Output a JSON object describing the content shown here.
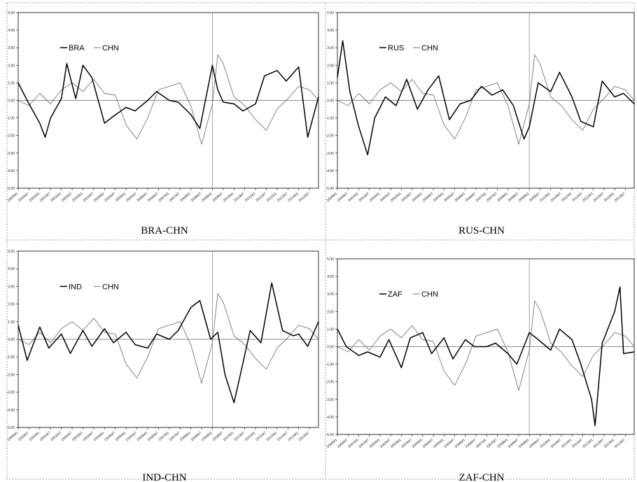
{
  "figure": {
    "panel_titles": [
      "BRA-CHN",
      "RUS-CHN",
      "IND-CHN",
      "ZAF-CHN"
    ]
  },
  "chart_data": [
    {
      "type": "line",
      "title": "BRA-CHN",
      "ylim": [
        -5,
        5
      ],
      "y_ticks": [
        "5.00",
        "4.00",
        "3.00",
        "2.00",
        "1.00",
        "0.00",
        "-1.00",
        "-2.00",
        "-3.00",
        "-4.00",
        "-5.00"
      ],
      "x_tick_labels": [
        "2000M1",
        "2000M7",
        "2001M1",
        "2001M7",
        "2002M1",
        "2002M7",
        "2003M1",
        "2003M7",
        "2004M1",
        "2004M7",
        "2005M1",
        "2005M7",
        "2006M1",
        "2006M7",
        "2007M1",
        "2007M7",
        "2008M1",
        "2008M7",
        "2009M1",
        "2009M7",
        "2010M1",
        "2010M7",
        "2011M1",
        "2011M7",
        "2012M1",
        "2012M7",
        "2013M1",
        "2013M7"
      ],
      "x_range": [
        "2000M1",
        "2013M12"
      ],
      "reference_line_x": "2009M1",
      "grid": false,
      "legend_position": "top-left",
      "series": [
        {
          "name": "BRA",
          "color": "#000000",
          "x": [
            "2000M1",
            "2000M6",
            "2001M1",
            "2001M4",
            "2001M7",
            "2002M1",
            "2002M4",
            "2002M9",
            "2003M1",
            "2003M6",
            "2004M1",
            "2004M6",
            "2005M1",
            "2005M6",
            "2006M1",
            "2006M6",
            "2007M1",
            "2007M6",
            "2008M1",
            "2008M6",
            "2009M1",
            "2009M4",
            "2009M7",
            "2010M1",
            "2010M6",
            "2011M1",
            "2011M6",
            "2012M1",
            "2012M6",
            "2013M1",
            "2013M6",
            "2013M12"
          ],
          "values": [
            1.0,
            0.0,
            -1.3,
            -2.1,
            -1.0,
            0.1,
            2.1,
            0.1,
            2.0,
            1.3,
            -1.3,
            -0.9,
            -0.4,
            -0.6,
            0.0,
            0.5,
            0.0,
            -0.1,
            -0.8,
            -1.6,
            2.0,
            0.6,
            -0.1,
            -0.2,
            -0.6,
            -0.2,
            1.4,
            1.7,
            1.1,
            1.9,
            -2.1,
            0.2
          ]
        },
        {
          "name": "CHN",
          "color": "#777777",
          "x": [
            "2000M1",
            "2000M7",
            "2001M1",
            "2001M7",
            "2002M1",
            "2002M7",
            "2003M1",
            "2003M7",
            "2004M1",
            "2004M7",
            "2005M1",
            "2005M7",
            "2006M1",
            "2006M7",
            "2007M1",
            "2007M7",
            "2008M1",
            "2008M7",
            "2009M1",
            "2009M4",
            "2009M7",
            "2010M1",
            "2010M7",
            "2011M1",
            "2011M7",
            "2012M1",
            "2012M7",
            "2013M1",
            "2013M7",
            "2013M12"
          ],
          "values": [
            0.0,
            -0.3,
            0.4,
            -0.2,
            0.6,
            1.0,
            0.5,
            1.2,
            0.4,
            0.3,
            -1.4,
            -2.2,
            -1.0,
            0.6,
            0.8,
            1.0,
            -0.3,
            -2.5,
            -0.2,
            2.6,
            2.1,
            0.2,
            -0.3,
            -1.1,
            -1.7,
            -0.5,
            0.1,
            0.8,
            0.6,
            0.0
          ]
        }
      ]
    },
    {
      "type": "line",
      "title": "RUS-CHN",
      "ylim": [
        -5,
        5
      ],
      "y_ticks": [
        "5.00",
        "4.00",
        "3.00",
        "2.00",
        "1.00",
        "0.00",
        "-1.00",
        "-2.00",
        "-3.00",
        "-4.00",
        "-5.00"
      ],
      "x_tick_labels": [
        "2000M1",
        "2000M7",
        "2001M1",
        "2001M7",
        "2002M1",
        "2002M7",
        "2003M1",
        "2003M7",
        "2004M1",
        "2004M7",
        "2005M1",
        "2005M7",
        "2006M1",
        "2006M7",
        "2007M1",
        "2007M7",
        "2008M1",
        "2008M7",
        "2009M1",
        "2009M7",
        "2010M1",
        "2010M7",
        "2011M1",
        "2011M7",
        "2012M1",
        "2012M7",
        "2013M1",
        "2013M7"
      ],
      "x_range": [
        "2000M1",
        "2013M12"
      ],
      "reference_line_x": "2009M1",
      "grid": false,
      "legend_position": "top-left",
      "series": [
        {
          "name": "RUS",
          "color": "#000000",
          "x": [
            "2000M1",
            "2000M4",
            "2000M8",
            "2001M1",
            "2001M6",
            "2001M10",
            "2002M4",
            "2002M10",
            "2003M4",
            "2003M10",
            "2004M4",
            "2004M10",
            "2005M4",
            "2005M10",
            "2006M4",
            "2006M10",
            "2007M4",
            "2007M10",
            "2008M4",
            "2008M10",
            "2009M1",
            "2009M6",
            "2010M1",
            "2010M6",
            "2011M1",
            "2011M6",
            "2012M1",
            "2012M6",
            "2013M1",
            "2013M6",
            "2013M12"
          ],
          "values": [
            1.3,
            3.4,
            0.5,
            -1.5,
            -3.1,
            -1.0,
            0.2,
            -0.3,
            1.2,
            -0.5,
            0.6,
            1.4,
            -1.1,
            -0.2,
            0.0,
            0.8,
            0.3,
            0.6,
            -0.3,
            -2.2,
            -1.5,
            1.0,
            0.5,
            1.6,
            0.2,
            -1.2,
            -1.5,
            1.1,
            0.2,
            0.4,
            -0.2
          ]
        },
        {
          "name": "CHN",
          "color": "#777777",
          "x": [
            "2000M1",
            "2000M7",
            "2001M1",
            "2001M7",
            "2002M1",
            "2002M7",
            "2003M1",
            "2003M7",
            "2004M1",
            "2004M7",
            "2005M1",
            "2005M7",
            "2006M1",
            "2006M7",
            "2007M1",
            "2007M7",
            "2008M1",
            "2008M7",
            "2009M1",
            "2009M4",
            "2009M7",
            "2010M1",
            "2010M7",
            "2011M1",
            "2011M7",
            "2012M1",
            "2012M7",
            "2013M1",
            "2013M7",
            "2013M12"
          ],
          "values": [
            0.0,
            -0.3,
            0.4,
            -0.2,
            0.6,
            1.0,
            0.5,
            1.2,
            0.4,
            0.3,
            -1.4,
            -2.2,
            -1.0,
            0.6,
            0.8,
            1.0,
            -0.3,
            -2.5,
            -0.2,
            2.6,
            2.1,
            0.2,
            -0.3,
            -1.1,
            -1.7,
            -0.5,
            0.1,
            0.8,
            0.6,
            0.0
          ]
        }
      ]
    },
    {
      "type": "line",
      "title": "IND-CHN",
      "ylim": [
        -5,
        5
      ],
      "y_ticks": [
        "5.00",
        "4.00",
        "3.00",
        "2.00",
        "1.00",
        "0.00",
        "-1.00",
        "-2.00",
        "-3.00",
        "-4.00",
        "-5.00"
      ],
      "x_tick_labels": [
        "2000M1",
        "2000M7",
        "2001M1",
        "2001M7",
        "2002M1",
        "2002M7",
        "2003M1",
        "2003M7",
        "2004M1",
        "2004M7",
        "2005M1",
        "2005M7",
        "2006M1",
        "2006M7",
        "2007M1",
        "2007M7",
        "2008M1",
        "2008M7",
        "2009M1",
        "2009M7",
        "2010M1",
        "2010M7",
        "2011M1",
        "2011M7",
        "2012M1",
        "2012M7",
        "2013M1",
        "2013M7"
      ],
      "x_range": [
        "2000M1",
        "2013M12"
      ],
      "reference_line_x": "2009M1",
      "grid": false,
      "legend_position": "top-left",
      "series": [
        {
          "name": "IND",
          "color": "#000000",
          "x": [
            "2000M1",
            "2000M6",
            "2001M1",
            "2001M6",
            "2002M1",
            "2002M6",
            "2003M1",
            "2003M6",
            "2004M1",
            "2004M6",
            "2005M1",
            "2005M6",
            "2006M1",
            "2006M6",
            "2007M1",
            "2007M6",
            "2008M1",
            "2008M6",
            "2008M12",
            "2009M4",
            "2009M8",
            "2010M1",
            "2010M5",
            "2010M10",
            "2011M4",
            "2011M10",
            "2012M4",
            "2012M10",
            "2013M1",
            "2013M6",
            "2013M12"
          ],
          "values": [
            0.8,
            -1.2,
            0.7,
            -0.5,
            0.3,
            -0.8,
            0.5,
            -0.4,
            0.6,
            -0.2,
            0.4,
            -0.3,
            -0.5,
            0.3,
            0.0,
            0.5,
            1.8,
            2.2,
            0.0,
            0.4,
            -2.0,
            -3.6,
            -1.8,
            0.5,
            -0.2,
            3.2,
            0.5,
            0.2,
            0.3,
            -0.4,
            1.0
          ]
        },
        {
          "name": "CHN",
          "color": "#777777",
          "x": [
            "2000M1",
            "2000M7",
            "2001M1",
            "2001M7",
            "2002M1",
            "2002M7",
            "2003M1",
            "2003M7",
            "2004M1",
            "2004M7",
            "2005M1",
            "2005M7",
            "2006M1",
            "2006M7",
            "2007M1",
            "2007M7",
            "2008M1",
            "2008M7",
            "2009M1",
            "2009M4",
            "2009M7",
            "2010M1",
            "2010M7",
            "2011M1",
            "2011M7",
            "2012M1",
            "2012M7",
            "2013M1",
            "2013M7",
            "2013M12"
          ],
          "values": [
            0.0,
            -0.3,
            0.4,
            -0.2,
            0.6,
            1.0,
            0.5,
            1.2,
            0.4,
            0.3,
            -1.4,
            -2.2,
            -1.0,
            0.6,
            0.8,
            1.0,
            -0.3,
            -2.5,
            -0.2,
            2.6,
            2.1,
            0.2,
            -0.3,
            -1.1,
            -1.7,
            -0.5,
            0.1,
            0.8,
            0.6,
            0.0
          ]
        }
      ]
    },
    {
      "type": "line",
      "title": "ZAF-CHN",
      "ylim": [
        -5,
        5
      ],
      "y_ticks": [
        "5.00",
        "4.00",
        "3.00",
        "2.00",
        "1.00",
        "0.00",
        "-1.00",
        "-2.00",
        "-3.00",
        "-4.00",
        "-5.00"
      ],
      "x_tick_labels": [
        "2000M1",
        "2000M7",
        "2001M1",
        "2001M7",
        "2002M1",
        "2002M7",
        "2003M1",
        "2003M7",
        "2004M1",
        "2004M7",
        "2005M1",
        "2005M7",
        "2006M1",
        "2006M7",
        "2007M1",
        "2007M7",
        "2008M1",
        "2008M7",
        "2009M1",
        "2009M7",
        "2010M1",
        "2010M7",
        "2011M1",
        "2011M7",
        "2012M1",
        "2012M7",
        "2013M1",
        "2013M7"
      ],
      "x_range": [
        "2000M1",
        "2013M12"
      ],
      "reference_line_x": "2009M1",
      "grid": false,
      "legend_position": "top-left",
      "series": [
        {
          "name": "ZAF",
          "color": "#000000",
          "x": [
            "2000M1",
            "2000M6",
            "2001M1",
            "2001M6",
            "2002M1",
            "2002M6",
            "2003M1",
            "2003M6",
            "2004M1",
            "2004M6",
            "2005M1",
            "2005M6",
            "2006M1",
            "2006M6",
            "2007M1",
            "2007M6",
            "2008M1",
            "2008M6",
            "2009M1",
            "2009M6",
            "2010M1",
            "2010M6",
            "2011M1",
            "2011M6",
            "2011M12",
            "2012M2",
            "2012M6",
            "2013M1",
            "2013M4",
            "2013M6",
            "2013M12"
          ],
          "values": [
            1.0,
            0.0,
            -0.5,
            -0.3,
            -0.6,
            0.4,
            -1.2,
            0.5,
            0.8,
            -0.4,
            0.5,
            -0.7,
            0.4,
            0.0,
            0.0,
            0.2,
            -0.4,
            -1.0,
            0.8,
            0.4,
            -0.2,
            1.0,
            0.4,
            -1.0,
            -3.0,
            -4.5,
            0.2,
            2.0,
            3.4,
            -0.4,
            -0.3
          ]
        },
        {
          "name": "CHN",
          "color": "#777777",
          "x": [
            "2000M1",
            "2000M7",
            "2001M1",
            "2001M7",
            "2002M1",
            "2002M7",
            "2003M1",
            "2003M7",
            "2004M1",
            "2004M7",
            "2005M1",
            "2005M7",
            "2006M1",
            "2006M7",
            "2007M1",
            "2007M7",
            "2008M1",
            "2008M7",
            "2009M1",
            "2009M4",
            "2009M7",
            "2010M1",
            "2010M7",
            "2011M1",
            "2011M7",
            "2012M1",
            "2012M7",
            "2013M1",
            "2013M7",
            "2013M12"
          ],
          "values": [
            0.0,
            -0.3,
            0.4,
            -0.2,
            0.6,
            1.0,
            0.5,
            1.2,
            0.4,
            0.3,
            -1.4,
            -2.2,
            -1.0,
            0.6,
            0.8,
            1.0,
            -0.3,
            -2.5,
            -0.2,
            2.6,
            2.1,
            0.2,
            -0.3,
            -1.1,
            -1.7,
            -0.5,
            0.1,
            0.8,
            0.6,
            0.0
          ]
        }
      ]
    }
  ]
}
